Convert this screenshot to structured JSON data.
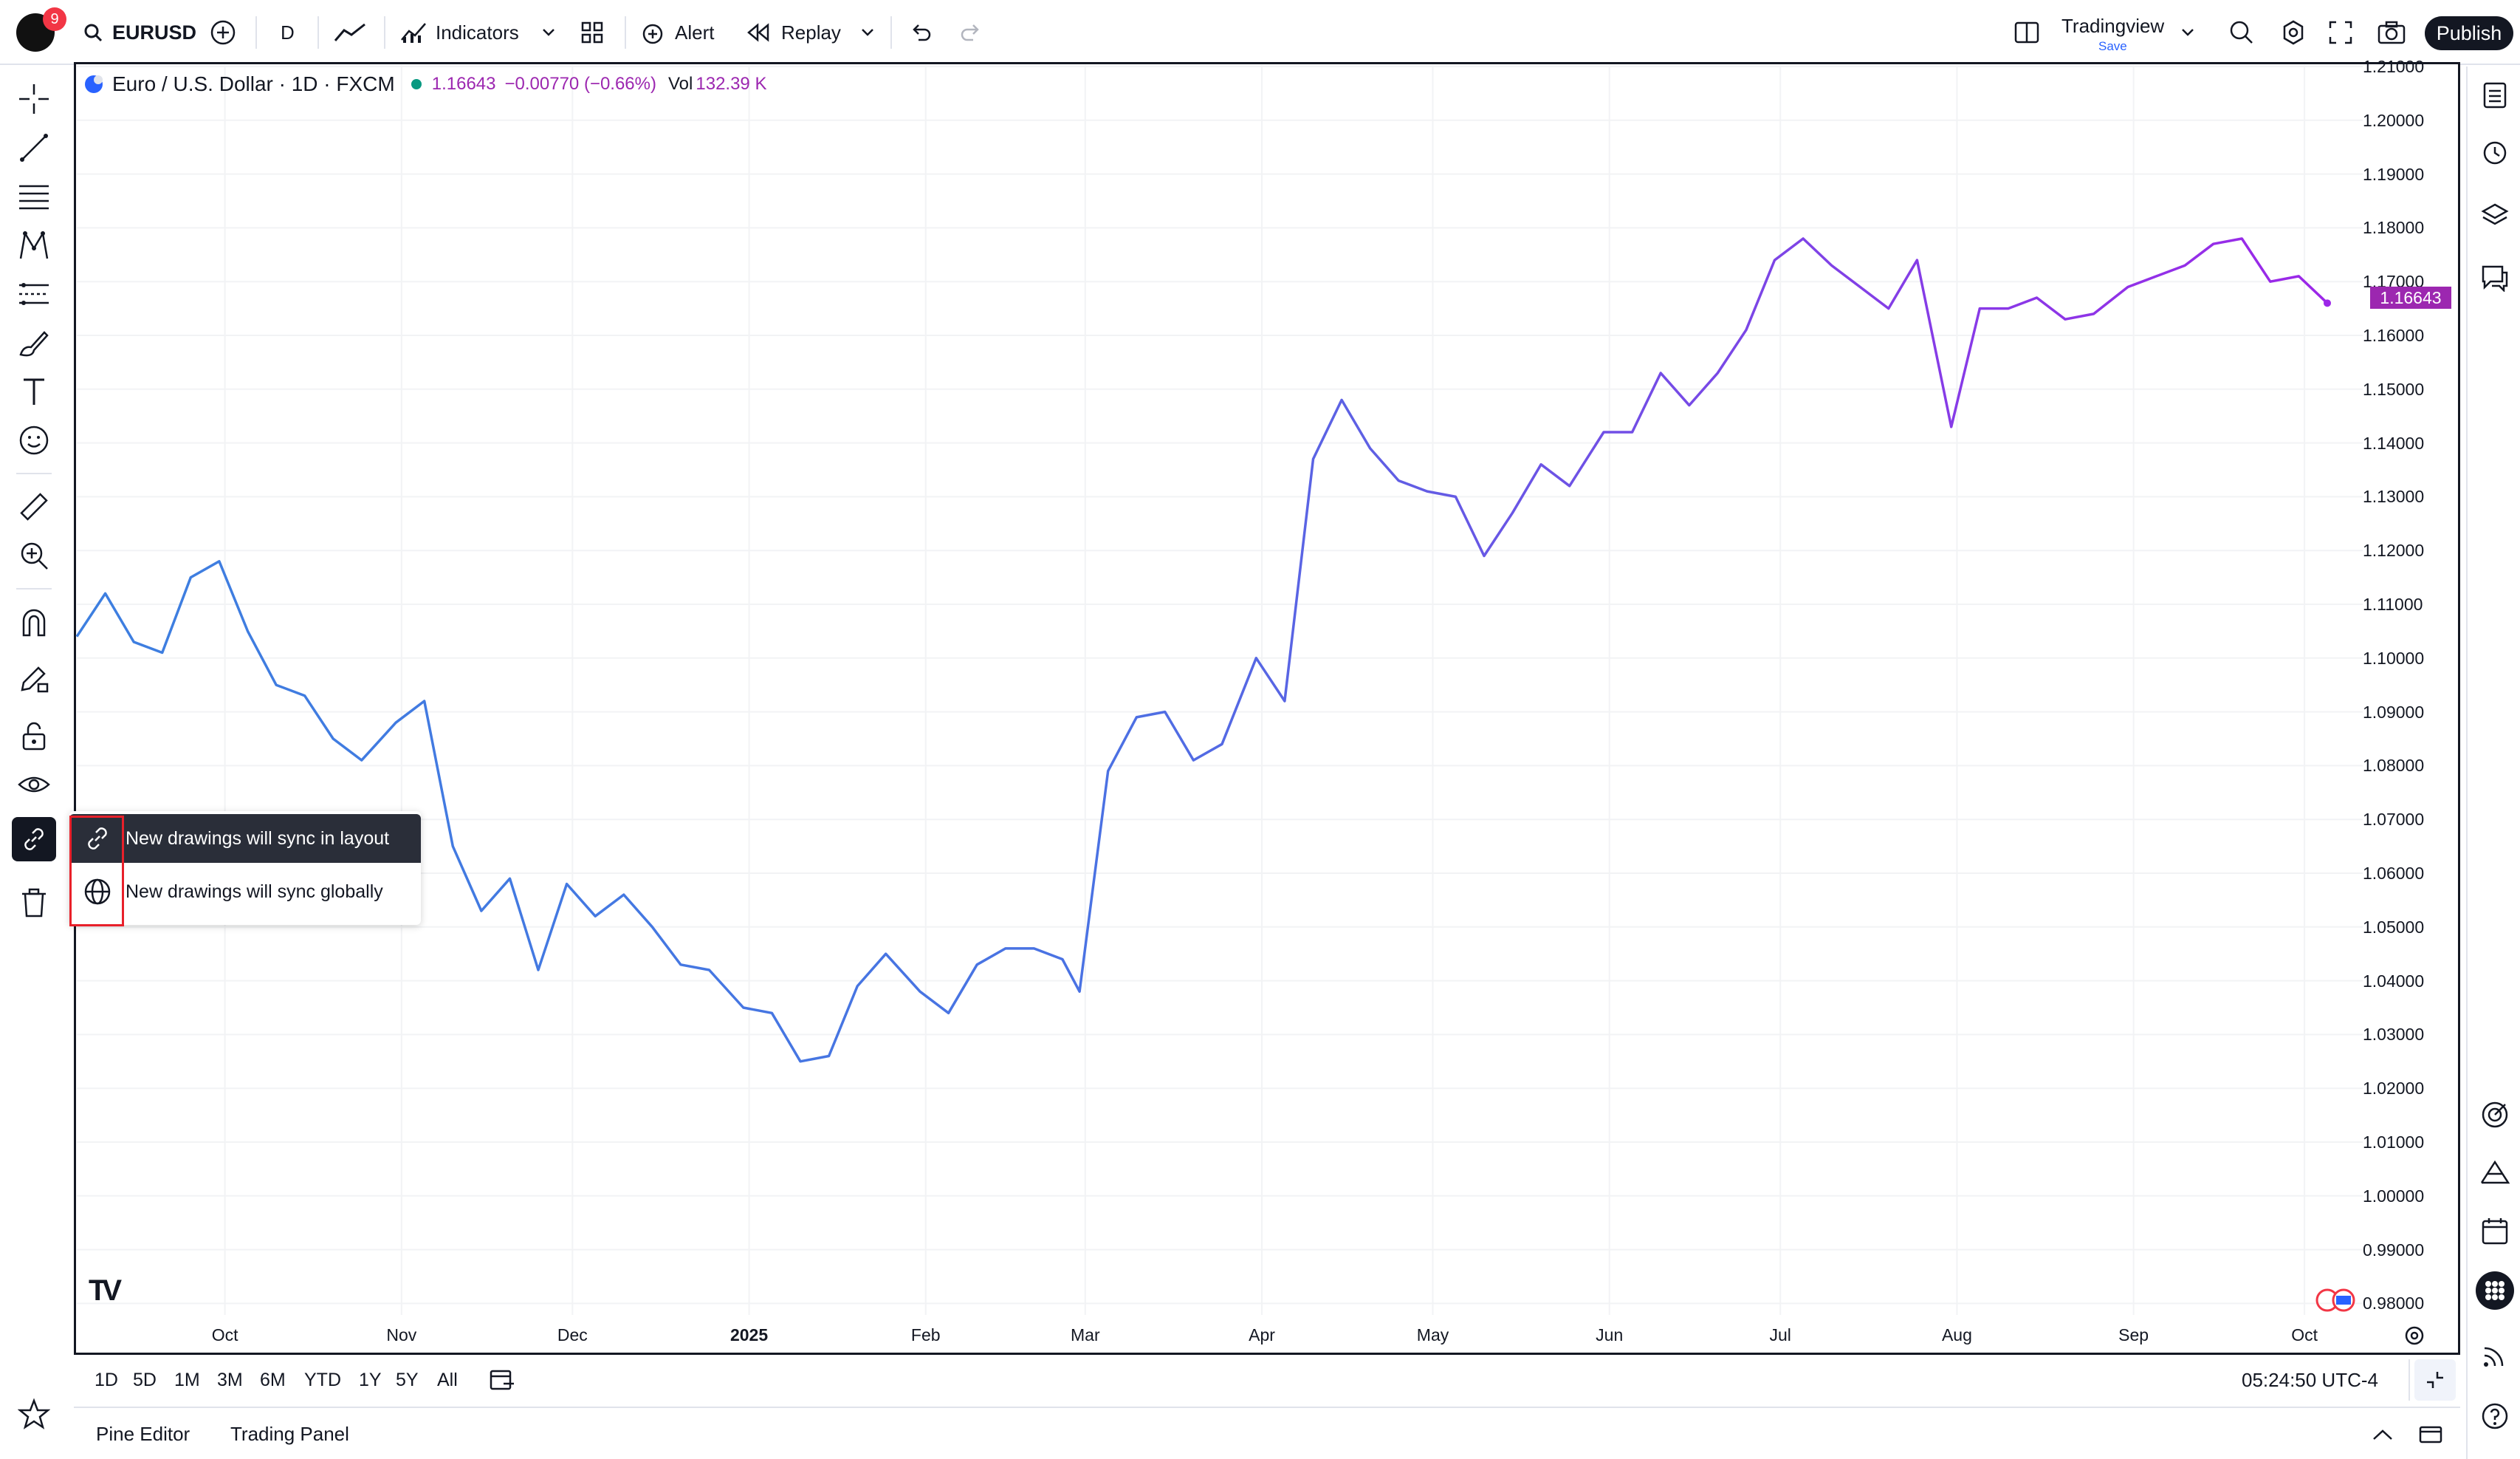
{
  "header": {
    "notification_count": "9",
    "symbol": "EURUSD",
    "interval": "D",
    "indicators_label": "Indicators",
    "alert_label": "Alert",
    "replay_label": "Replay",
    "layout_name": "Tradingview",
    "layout_status": "Save",
    "publish_label": "Publish"
  },
  "legend": {
    "title": "Euro / U.S. Dollar · 1D · FXCM",
    "price": "1.16643",
    "change": "−0.00770 (−0.66%)",
    "vol_label": "Vol",
    "vol_value": "132.39 K"
  },
  "popup": {
    "items": [
      {
        "label": "New drawings will sync in layout",
        "icon": "link-icon",
        "selected": true
      },
      {
        "label": "New drawings will sync globally",
        "icon": "globe-icon",
        "selected": false
      }
    ]
  },
  "time_ranges": [
    "1D",
    "5D",
    "1M",
    "3M",
    "6M",
    "YTD",
    "1Y",
    "5Y",
    "All"
  ],
  "clock": "05:24:50 UTC-4",
  "bottom_tabs": [
    "Pine Editor",
    "Trading Panel"
  ],
  "colors": {
    "line_start": "#3d7fe0",
    "line_end": "#9c27e8",
    "accent": "#9c27b0",
    "highlight": "#e8202a"
  },
  "chart_data": {
    "type": "line",
    "title": "Euro / U.S. Dollar · 1D · FXCM",
    "y_ticks": [
      "1.21000",
      "1.20000",
      "1.19000",
      "1.18000",
      "1.17000",
      "1.16000",
      "1.15000",
      "1.14000",
      "1.13000",
      "1.12000",
      "1.11000",
      "1.10000",
      "1.09000",
      "1.08000",
      "1.07000",
      "1.06000",
      "1.05000",
      "1.04000",
      "1.03000",
      "1.02000",
      "1.01000",
      "1.00000",
      "0.99000",
      "0.98000"
    ],
    "x_ticks": [
      "Oct",
      "Nov",
      "Dec",
      "2025",
      "Feb",
      "Mar",
      "Apr",
      "May",
      "Jun",
      "Jul",
      "Aug",
      "Sep",
      "Oct"
    ],
    "ylim": [
      0.975,
      1.21
    ],
    "last_value_label": "1.16643",
    "series": [
      {
        "x": [
          "2024-09-05",
          "2024-09-10",
          "2024-09-15",
          "2024-09-20",
          "2024-09-25",
          "2024-09-30",
          "2024-10-05",
          "2024-10-10",
          "2024-10-15",
          "2024-10-20",
          "2024-10-25",
          "2024-10-31",
          "2024-11-05",
          "2024-11-10",
          "2024-11-15",
          "2024-11-20",
          "2024-11-25",
          "2024-11-30",
          "2024-12-05",
          "2024-12-10",
          "2024-12-15",
          "2024-12-20",
          "2024-12-25",
          "2024-12-31",
          "2025-01-05",
          "2025-01-10",
          "2025-01-15",
          "2025-01-20",
          "2025-01-25",
          "2025-01-31",
          "2025-02-05",
          "2025-02-10",
          "2025-02-15",
          "2025-02-20",
          "2025-02-25",
          "2025-02-28",
          "2025-03-05",
          "2025-03-10",
          "2025-03-15",
          "2025-03-20",
          "2025-03-25",
          "2025-03-31",
          "2025-04-05",
          "2025-04-10",
          "2025-04-15",
          "2025-04-20",
          "2025-04-25",
          "2025-04-30",
          "2025-05-05",
          "2025-05-10",
          "2025-05-15",
          "2025-05-20",
          "2025-05-25",
          "2025-05-31",
          "2025-06-05",
          "2025-06-10",
          "2025-06-15",
          "2025-06-20",
          "2025-06-25",
          "2025-06-30",
          "2025-07-05",
          "2025-07-10",
          "2025-07-15",
          "2025-07-20",
          "2025-07-25",
          "2025-07-31",
          "2025-08-05",
          "2025-08-10",
          "2025-08-15",
          "2025-08-20",
          "2025-08-25",
          "2025-08-31",
          "2025-09-05",
          "2025-09-10",
          "2025-09-15",
          "2025-09-20",
          "2025-09-25",
          "2025-09-30",
          "2025-10-05"
        ],
        "values": [
          1.104,
          1.112,
          1.103,
          1.101,
          1.115,
          1.118,
          1.105,
          1.095,
          1.093,
          1.085,
          1.081,
          1.088,
          1.092,
          1.065,
          1.053,
          1.059,
          1.042,
          1.058,
          1.052,
          1.056,
          1.05,
          1.043,
          1.042,
          1.035,
          1.034,
          1.025,
          1.026,
          1.039,
          1.045,
          1.038,
          1.034,
          1.043,
          1.046,
          1.046,
          1.044,
          1.038,
          1.079,
          1.089,
          1.09,
          1.081,
          1.084,
          1.1,
          1.092,
          1.137,
          1.148,
          1.139,
          1.133,
          1.131,
          1.13,
          1.119,
          1.127,
          1.136,
          1.132,
          1.142,
          1.142,
          1.153,
          1.147,
          1.153,
          1.161,
          1.174,
          1.178,
          1.173,
          1.169,
          1.165,
          1.174,
          1.143,
          1.165,
          1.165,
          1.167,
          1.163,
          1.164,
          1.169,
          1.171,
          1.173,
          1.177,
          1.178,
          1.17,
          1.171,
          1.166
        ]
      }
    ]
  }
}
